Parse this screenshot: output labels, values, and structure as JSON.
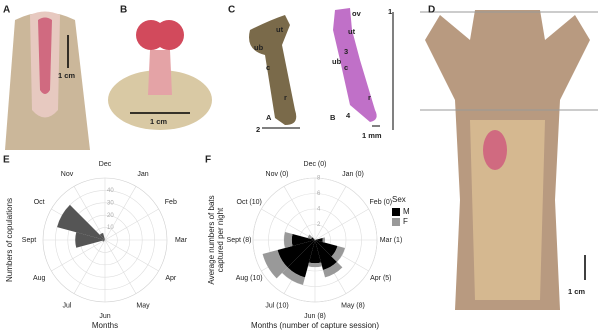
{
  "panel_a": {
    "label": "A",
    "scale": "1 cm"
  },
  "panel_b": {
    "label": "B",
    "scale": "1 cm"
  },
  "panel_c": {
    "label": "C",
    "left": [
      "ut",
      "ub",
      "c",
      "r",
      "A",
      "2"
    ],
    "right": [
      "ov",
      "ut",
      "3",
      "ub",
      "c",
      "r",
      "B",
      "4",
      "1",
      "1 mm"
    ]
  },
  "panel_d": {
    "label": "D",
    "scale": "1 cm"
  },
  "chart_data": [
    {
      "type": "polar_bar",
      "panel": "E",
      "ylabel": [
        "Numbers of copulations"
      ],
      "xlabel": "Months",
      "categories": [
        "Dec",
        "Jan",
        "Feb",
        "Mar",
        "Apr",
        "May",
        "Jun",
        "Jul",
        "Aug",
        "Sept",
        "Oct",
        "Nov"
      ],
      "series": [
        {
          "color": "#555555",
          "values": [
            0,
            0,
            0,
            0,
            0,
            0,
            0,
            0,
            2,
            24,
            40,
            6
          ]
        }
      ],
      "rlim": [
        0,
        50
      ],
      "rticks": [
        10,
        20,
        30,
        40
      ]
    },
    {
      "type": "polar_bar",
      "panel": "F",
      "ylabel": [
        "Average numbers of bats",
        "captured per night"
      ],
      "xlabel": "Months (number of capture session)",
      "categories": [
        "Dec (0)",
        "Jan (0)",
        "Feb (0)",
        "Mar (1)",
        "Apr (5)",
        "May (8)",
        "Jun (8)",
        "Jul (10)",
        "Aug (10)",
        "Sept (8)",
        "Oct (10)",
        "Nov (0)"
      ],
      "legend_title": "Sex",
      "series": [
        {
          "name": "M",
          "color": "#000000",
          "values": [
            0,
            0,
            0,
            1,
            3,
            4,
            3,
            5,
            5,
            3,
            0.5,
            0
          ]
        },
        {
          "name": "F",
          "color": "#999999",
          "values": [
            0,
            0,
            0,
            0.3,
            1,
            1,
            0.5,
            1,
            2,
            1,
            0.5,
            0
          ]
        }
      ],
      "rlim": [
        0,
        8
      ],
      "rticks": [
        2,
        4,
        6,
        8
      ]
    }
  ]
}
